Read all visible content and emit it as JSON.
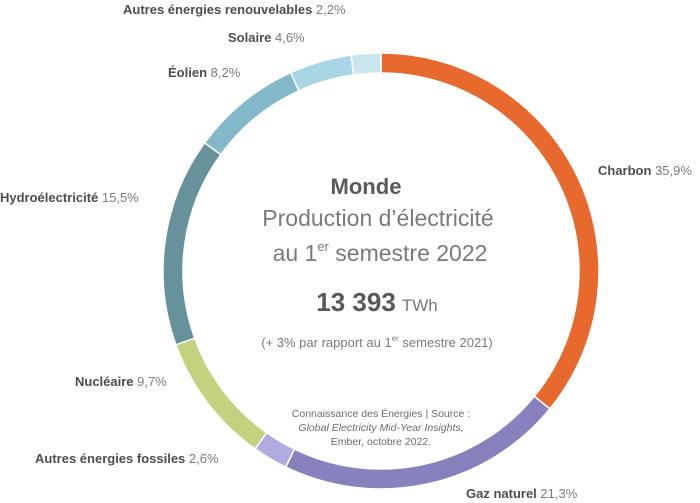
{
  "chart_data": {
    "type": "pie",
    "variant": "donut",
    "categories": [
      "Charbon",
      "Gaz naturel",
      "Autres énergies fossiles",
      "Nucléaire",
      "Hydroélectricité",
      "Éolien",
      "Solaire",
      "Autres énergies renouvelables"
    ],
    "values": [
      35.9,
      21.3,
      2.6,
      9.7,
      15.5,
      8.2,
      4.6,
      2.2
    ],
    "value_labels": [
      "35,9%",
      "21,3%",
      "2,6%",
      "9,7%",
      "15,5%",
      "8,2%",
      "4,6%",
      "2,2%"
    ],
    "colors": [
      "#e8692e",
      "#8781bd",
      "#b1ace0",
      "#c3d27e",
      "#67929b",
      "#83b8c9",
      "#a9d6e6",
      "#c9e6ee"
    ],
    "center": {
      "region": "Monde",
      "title_line1": "Production d’électricité",
      "title_line2_pre": "au 1",
      "title_line2_sup": "er",
      "title_line2_post": " semestre 2022",
      "total": "13 393",
      "unit": "TWh",
      "comparison_pre": "(+ 3% par rapport au 1",
      "comparison_sup": "er",
      "comparison_post": " semestre 2021)"
    },
    "source": {
      "line1": "Connaissance des Énergies | Source :",
      "line2": "Global Electricity Mid-Year Insights,",
      "line3": "Ember, octobre 2022."
    }
  }
}
